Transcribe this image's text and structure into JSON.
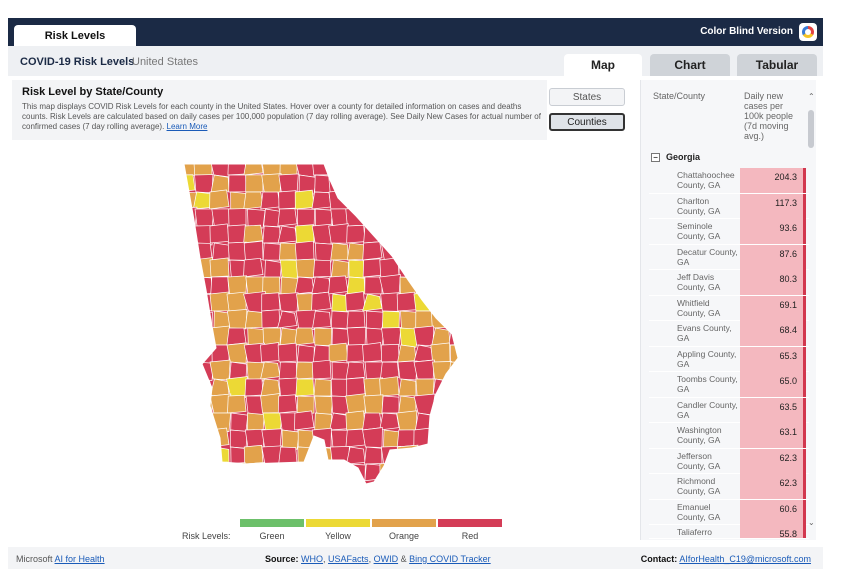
{
  "topbar": {
    "tab_label": "Risk Levels",
    "color_blind_label": "Color Blind Version"
  },
  "header": {
    "title": "COVID-19 Risk Levels",
    "subtitle": "United States",
    "tabs": [
      {
        "label": "Map",
        "active": true
      },
      {
        "label": "Chart",
        "active": false
      },
      {
        "label": "Tabular",
        "active": false
      }
    ]
  },
  "description": {
    "title": "Risk Level by State/County",
    "text": "This map displays COVID Risk Levels for each county in the United States. Hover over a county for detailed information on cases and deaths counts. Risk Levels are calculated based on daily cases per 100,000 population (7 day rolling average). See Daily New Cases for actual number of confirmed cases (7 day rolling average).",
    "link": "Learn More"
  },
  "toggle": {
    "states_label": "States",
    "counties_label": "Counties"
  },
  "legend": {
    "title": "Risk Levels:",
    "items": [
      {
        "label": "Green",
        "color": "#6cc06a"
      },
      {
        "label": "Yellow",
        "color": "#ecd935"
      },
      {
        "label": "Orange",
        "color": "#e2a24b"
      },
      {
        "label": "Red",
        "color": "#d43c57"
      }
    ]
  },
  "table": {
    "col_a": "State/County",
    "col_b": "Daily new cases per 100k people (7d moving avg.)",
    "group": "Georgia",
    "rows": [
      {
        "name": "Chattahoochee County, GA",
        "value": "204.3"
      },
      {
        "name": "Charlton County, GA",
        "value": "117.3"
      },
      {
        "name": "Seminole County, GA",
        "value": "93.6"
      },
      {
        "name": "Decatur County, GA",
        "value": "87.6"
      },
      {
        "name": "Jeff Davis County, GA",
        "value": "80.3"
      },
      {
        "name": "Whitfield County, GA",
        "value": "69.1"
      },
      {
        "name": "Evans County, GA",
        "value": "68.4"
      },
      {
        "name": "Appling County, GA",
        "value": "65.3"
      },
      {
        "name": "Toombs County, GA",
        "value": "65.0"
      },
      {
        "name": "Candler County, GA",
        "value": "63.5"
      },
      {
        "name": "Washington County, GA",
        "value": "63.1"
      },
      {
        "name": "Jefferson County, GA",
        "value": "62.3"
      },
      {
        "name": "Richmond County, GA",
        "value": "62.3"
      },
      {
        "name": "Emanuel County, GA",
        "value": "60.6"
      },
      {
        "name": "Taliaferro",
        "value": "55.8"
      }
    ]
  },
  "footer": {
    "brand": "Microsoft",
    "brand_link": "AI for Health",
    "sources_label": "Source:",
    "source_who": "WHO",
    "source_usafacts": "USAFacts",
    "source_owid": "OWID",
    "source_amp": "&",
    "source_bing": "Bing COVID Tracker",
    "contact_label": "Contact:",
    "contact_email": "AIforHealth_C19@microsoft.com"
  },
  "map": {
    "state": "Georgia"
  }
}
